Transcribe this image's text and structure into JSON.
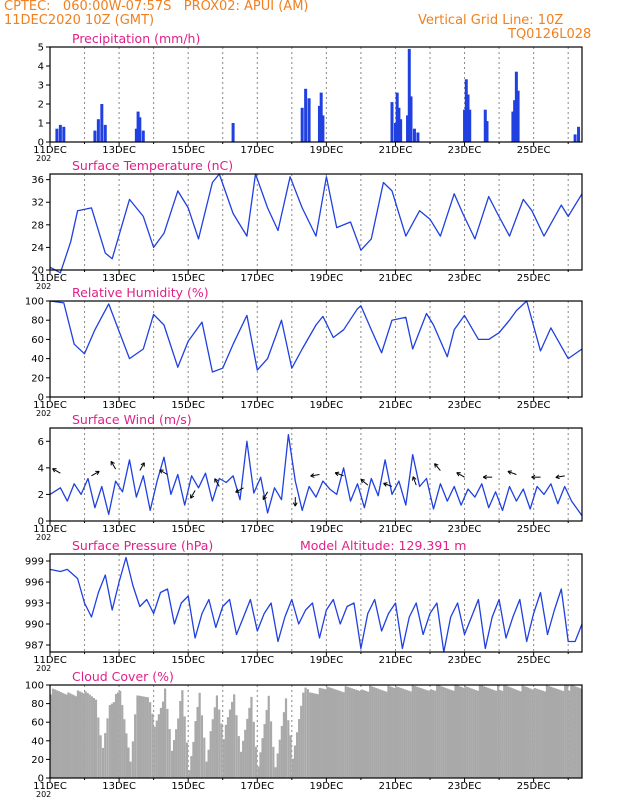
{
  "header": {
    "line1": "CPTEC:   060:00W-07:57S   PROX02: APUI (AM)",
    "line2": "11DEC2020 10Z (GMT)",
    "right1": "Vertical Grid Line: 10Z",
    "right2": "TQ0126L028"
  },
  "colors": {
    "header": "#f08020",
    "title": "#e0208a",
    "series": "#2040e0",
    "cloud": "#a9a9a9",
    "axis": "#000000"
  },
  "x_axis": {
    "labels": [
      "11DEC",
      "13DEC",
      "15DEC",
      "17DEC",
      "19DEC",
      "21DEC",
      "23DEC",
      "25DEC"
    ],
    "year_stub": "202"
  },
  "chart_data": [
    {
      "type": "bar",
      "title": "Precipitation (mm/h)",
      "ylim": [
        0,
        5
      ],
      "yticks": [
        0,
        1,
        2,
        3,
        4,
        5
      ],
      "x_unit": "day offset from 11DEC 10Z",
      "xlim": [
        0,
        15.4
      ],
      "points": [
        [
          0.2,
          0.7
        ],
        [
          0.3,
          0.9
        ],
        [
          0.4,
          0.8
        ],
        [
          1.3,
          0.6
        ],
        [
          1.4,
          1.2
        ],
        [
          1.5,
          2.0
        ],
        [
          1.6,
          0.9
        ],
        [
          2.5,
          0.7
        ],
        [
          2.55,
          1.6
        ],
        [
          2.6,
          1.3
        ],
        [
          2.7,
          0.6
        ],
        [
          5.3,
          1.0
        ],
        [
          7.3,
          1.8
        ],
        [
          7.4,
          2.8
        ],
        [
          7.5,
          2.3
        ],
        [
          7.8,
          1.9
        ],
        [
          7.85,
          2.6
        ],
        [
          7.9,
          1.4
        ],
        [
          9.9,
          2.1
        ],
        [
          10.0,
          1.0
        ],
        [
          10.05,
          2.6
        ],
        [
          10.1,
          1.8
        ],
        [
          10.15,
          1.2
        ],
        [
          10.35,
          1.4
        ],
        [
          10.4,
          4.9
        ],
        [
          10.45,
          2.4
        ],
        [
          10.55,
          0.7
        ],
        [
          10.65,
          0.5
        ],
        [
          12.0,
          1.7
        ],
        [
          12.05,
          3.3
        ],
        [
          12.1,
          2.5
        ],
        [
          12.15,
          1.7
        ],
        [
          12.6,
          1.7
        ],
        [
          12.65,
          1.1
        ],
        [
          13.4,
          1.6
        ],
        [
          13.45,
          2.2
        ],
        [
          13.5,
          3.7
        ],
        [
          13.55,
          2.7
        ],
        [
          15.2,
          0.4
        ],
        [
          15.3,
          0.8
        ]
      ],
      "series_color": "#2040e0"
    },
    {
      "type": "line",
      "title": "Surface Temperature (nC)",
      "ylim": [
        20,
        37
      ],
      "yticks": [
        20,
        24,
        28,
        32,
        36
      ],
      "x": [
        0,
        0.3,
        0.6,
        0.8,
        1.2,
        1.6,
        1.8,
        2.3,
        2.7,
        3.0,
        3.3,
        3.7,
        4.0,
        4.3,
        4.7,
        4.9,
        5.3,
        5.7,
        5.95,
        6.3,
        6.6,
        6.95,
        7.3,
        7.7,
        8.0,
        8.3,
        8.7,
        9.0,
        9.3,
        9.65,
        9.9,
        10.3,
        10.7,
        11.0,
        11.3,
        11.7,
        11.95,
        12.3,
        12.7,
        12.95,
        13.3,
        13.7,
        13.95,
        14.3,
        14.8,
        15.0,
        15.4
      ],
      "values": [
        20.5,
        19.5,
        25.0,
        30.5,
        31.0,
        23.0,
        22.0,
        32.5,
        29.5,
        24.0,
        26.5,
        34.0,
        31.0,
        25.5,
        35.5,
        37.0,
        30.0,
        26.0,
        37.0,
        31.0,
        27.0,
        36.5,
        31.0,
        26.0,
        36.5,
        27.5,
        28.5,
        23.5,
        25.5,
        35.5,
        34.0,
        26.0,
        30.5,
        29.0,
        26.0,
        33.5,
        30.0,
        25.5,
        33.0,
        30.0,
        26.0,
        32.5,
        30.5,
        26.0,
        31.5,
        29.5,
        33.5
      ],
      "series_color": "#2040e0"
    },
    {
      "type": "line",
      "title": "Relative Humidity (%)",
      "ylim": [
        0,
        100
      ],
      "yticks": [
        0,
        20,
        40,
        60,
        80,
        100
      ],
      "x": [
        0,
        0.4,
        0.7,
        1.0,
        1.3,
        1.7,
        1.9,
        2.3,
        2.7,
        3.0,
        3.3,
        3.7,
        4.0,
        4.4,
        4.7,
        5.0,
        5.3,
        5.7,
        6.0,
        6.3,
        6.7,
        7.0,
        7.3,
        7.7,
        7.9,
        8.2,
        8.5,
        8.9,
        9.0,
        9.3,
        9.6,
        9.9,
        10.3,
        10.5,
        10.9,
        11.1,
        11.5,
        11.7,
        12.0,
        12.4,
        12.7,
        13.0,
        13.3,
        13.5,
        13.8,
        14.2,
        14.5,
        15.0,
        15.4
      ],
      "values": [
        100,
        98,
        55,
        45,
        70,
        97,
        78,
        40,
        50,
        86,
        75,
        31,
        58,
        78,
        26,
        30,
        55,
        85,
        28,
        40,
        80,
        30,
        50,
        75,
        84,
        62,
        70,
        92,
        95,
        70,
        46,
        80,
        83,
        50,
        87,
        75,
        42,
        70,
        85,
        60,
        60,
        67,
        80,
        90,
        100,
        48,
        72,
        40,
        50
      ],
      "series_color": "#2040e0"
    },
    {
      "type": "line",
      "title": "Surface Wind (m/s)",
      "ylim": [
        0,
        7
      ],
      "yticks": [
        0,
        2,
        4,
        6
      ],
      "x": [
        0,
        0.3,
        0.5,
        0.7,
        0.9,
        1.1,
        1.3,
        1.5,
        1.7,
        1.9,
        2.1,
        2.3,
        2.5,
        2.7,
        2.9,
        3.1,
        3.3,
        3.5,
        3.7,
        3.9,
        4.1,
        4.3,
        4.5,
        4.7,
        4.9,
        5.1,
        5.3,
        5.5,
        5.7,
        5.9,
        6.1,
        6.3,
        6.5,
        6.7,
        6.9,
        7.1,
        7.3,
        7.5,
        7.7,
        7.9,
        8.1,
        8.3,
        8.5,
        8.7,
        8.9,
        9.1,
        9.3,
        9.5,
        9.7,
        9.9,
        10.1,
        10.3,
        10.5,
        10.7,
        10.9,
        11.1,
        11.3,
        11.5,
        11.7,
        11.9,
        12.1,
        12.3,
        12.5,
        12.7,
        12.9,
        13.1,
        13.3,
        13.5,
        13.7,
        13.9,
        14.1,
        14.3,
        14.5,
        14.7,
        14.9,
        15.1,
        15.4
      ],
      "values": [
        2,
        2.5,
        1.5,
        2.8,
        2.0,
        3.2,
        1.0,
        2.6,
        0.5,
        3.0,
        2.2,
        4.6,
        1.8,
        3.4,
        0.8,
        3.0,
        4.8,
        2.0,
        3.5,
        1.2,
        3.4,
        2.5,
        3.6,
        1.5,
        3.2,
        2.9,
        3.4,
        1.6,
        6.0,
        2.1,
        3.3,
        0.6,
        2.5,
        1.6,
        6.5,
        3.0,
        0.8,
        2.6,
        1.8,
        3.0,
        2.4,
        2.0,
        4.0,
        1.5,
        2.8,
        1.0,
        3.2,
        1.9,
        4.6,
        2.0,
        3.0,
        1.2,
        5.0,
        2.6,
        3.2,
        0.9,
        2.8,
        1.5,
        2.6,
        1.2,
        2.4,
        1.8,
        2.8,
        1.0,
        2.2,
        0.8,
        2.6,
        1.5,
        2.4,
        0.9,
        2.6,
        2.0,
        2.8,
        1.3,
        2.6,
        1.5,
        0.4
      ],
      "series_color": "#2040e0",
      "wind_arrows": {
        "x": [
          0.3,
          1.2,
          1.9,
          2.6,
          3.4,
          4.2,
          4.9,
          5.6,
          6.3,
          7.1,
          7.8,
          8.5,
          9.2,
          9.9,
          10.6,
          11.3,
          12.0,
          12.8,
          13.5,
          14.2,
          14.9
        ],
        "y": [
          3.6,
          3.4,
          3.9,
          3.8,
          3.5,
          2.3,
          2.6,
          2.5,
          2.2,
          1.8,
          3.5,
          3.4,
          2.7,
          2.6,
          2.7,
          3.8,
          3.3,
          3.3,
          3.5,
          3.3,
          3.4
        ],
        "angle_deg": [
          210,
          330,
          240,
          300,
          210,
          120,
          240,
          150,
          120,
          90,
          170,
          200,
          220,
          200,
          250,
          230,
          210,
          180,
          200,
          180,
          170
        ]
      }
    },
    {
      "type": "line",
      "title": "Surface Pressure (hPa)",
      "annotation": "Model Altitude: 129.391 m",
      "ylim": [
        986,
        1000
      ],
      "yticks": [
        987,
        990,
        993,
        996,
        999
      ],
      "x": [
        0,
        0.3,
        0.5,
        0.8,
        1.0,
        1.2,
        1.4,
        1.6,
        1.8,
        2.0,
        2.2,
        2.4,
        2.6,
        2.8,
        3.0,
        3.2,
        3.4,
        3.6,
        3.8,
        4.0,
        4.2,
        4.4,
        4.6,
        4.8,
        5.0,
        5.2,
        5.4,
        5.6,
        5.8,
        6.0,
        6.2,
        6.4,
        6.6,
        6.8,
        7.0,
        7.2,
        7.4,
        7.6,
        7.8,
        8.0,
        8.2,
        8.4,
        8.6,
        8.8,
        9.0,
        9.2,
        9.4,
        9.6,
        9.8,
        10.0,
        10.2,
        10.4,
        10.6,
        10.8,
        11.0,
        11.2,
        11.4,
        11.6,
        11.8,
        12.0,
        12.2,
        12.4,
        12.6,
        12.8,
        13.0,
        13.2,
        13.4,
        13.6,
        13.8,
        14.0,
        14.2,
        14.4,
        14.6,
        14.8,
        15.0,
        15.2,
        15.4
      ],
      "values": [
        997.8,
        997.5,
        997.8,
        996.5,
        993.0,
        991.0,
        994.5,
        997.0,
        992.0,
        996.0,
        999.5,
        995.5,
        992.5,
        993.5,
        991.5,
        994.5,
        995.0,
        990.0,
        993.0,
        994.0,
        988.0,
        991.5,
        993.5,
        989.5,
        992.5,
        993.5,
        988.5,
        991.0,
        993.5,
        989.0,
        991.5,
        993.0,
        987.5,
        991.0,
        993.5,
        990.0,
        992.0,
        993.0,
        988.0,
        992.0,
        993.5,
        990.0,
        992.5,
        993.0,
        986.5,
        991.5,
        993.5,
        989.0,
        991.5,
        993.0,
        986.5,
        991.0,
        993.0,
        988.5,
        991.5,
        993.0,
        986.0,
        991.0,
        993.0,
        988.5,
        991.0,
        993.5,
        986.5,
        991.0,
        993.5,
        988.0,
        991.0,
        993.5,
        987.5,
        991.5,
        994.5,
        988.5,
        992.0,
        995.0,
        987.5,
        987.5,
        990.0
      ],
      "series_color": "#2040e0"
    },
    {
      "type": "area",
      "title": "Cloud Cover (%)",
      "ylim": [
        0,
        100
      ],
      "yticks": [
        0,
        20,
        40,
        60,
        80,
        100
      ],
      "x": [
        0,
        0.5,
        1.0,
        1.3,
        1.5,
        1.7,
        2.0,
        2.3,
        2.5,
        2.8,
        3.0,
        3.3,
        3.5,
        3.8,
        4.0,
        4.3,
        4.5,
        4.8,
        5.0,
        5.3,
        5.5,
        5.8,
        6.0,
        6.3,
        6.5,
        6.8,
        7.0,
        7.3,
        7.5,
        8.0,
        9.0,
        10.0,
        11.0,
        12.0,
        13.0,
        14.0,
        15.0,
        15.4
      ],
      "values": [
        93,
        92,
        90,
        85,
        30,
        80,
        92,
        20,
        88,
        90,
        55,
        93,
        30,
        92,
        10,
        90,
        20,
        88,
        45,
        90,
        25,
        88,
        10,
        90,
        10,
        88,
        20,
        95,
        92,
        95,
        96,
        96,
        97,
        97,
        97,
        96,
        97,
        97
      ],
      "series_color": "#a9a9a9"
    }
  ]
}
